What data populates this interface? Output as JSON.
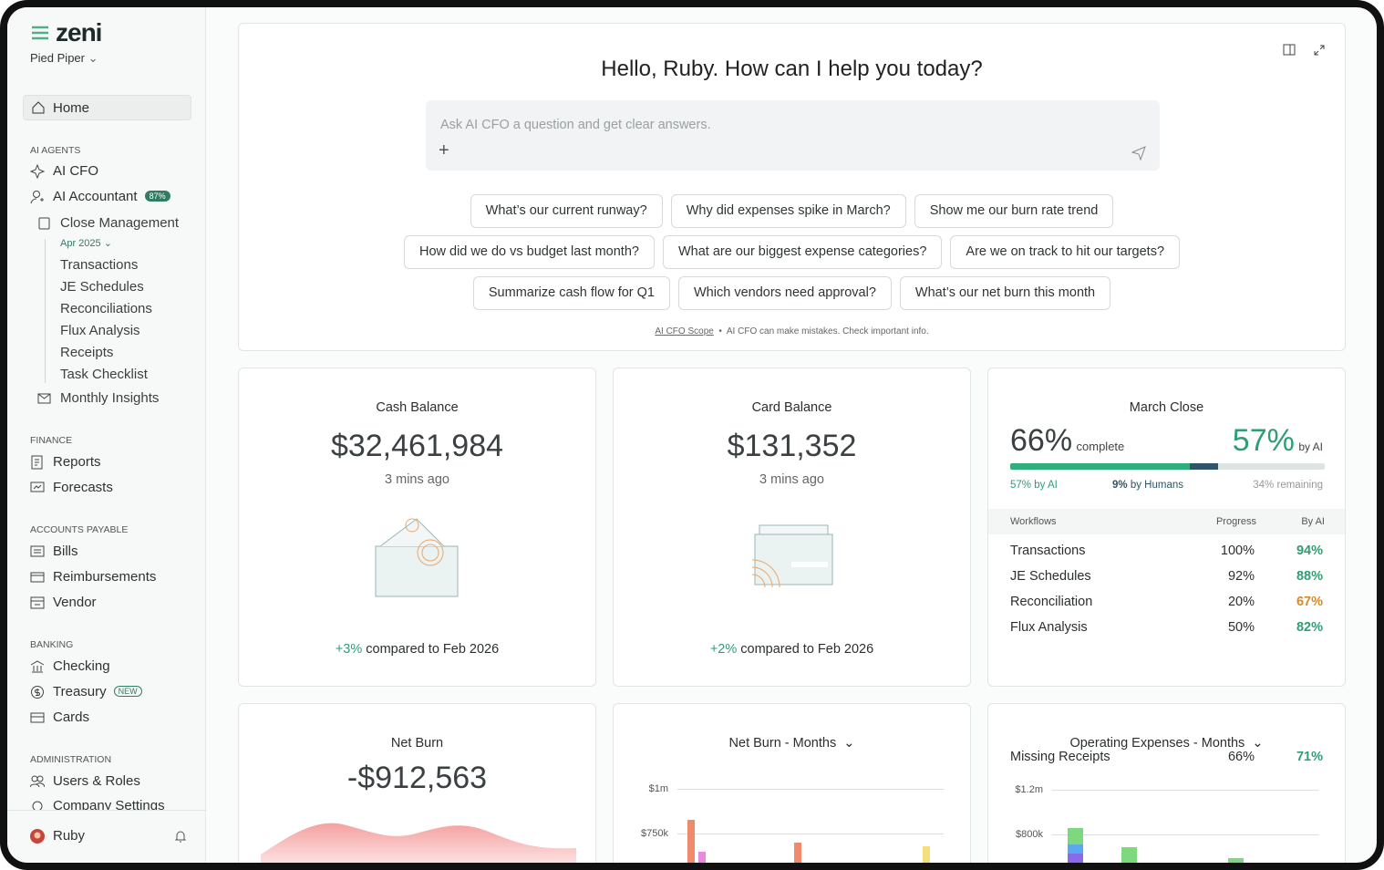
{
  "sidebar": {
    "brand": "zeni",
    "org": "Pied Piper",
    "home": "Home",
    "ai_agents": {
      "title": "AI AGENTS",
      "items": [
        "AI CFO",
        "AI Accountant"
      ],
      "accountant_badge": "87%",
      "close_management": {
        "label": "Close Management",
        "period": "Apr 2025",
        "items": [
          "Transactions",
          "JE Schedules",
          "Reconciliations",
          "Flux Analysis",
          "Receipts",
          "Task Checklist"
        ]
      },
      "monthly_insights": "Monthly Insights"
    },
    "finance": {
      "title": "FINANCE",
      "items": [
        "Reports",
        "Forecasts"
      ]
    },
    "accounts_payable": {
      "title": "ACCOUNTS PAYABLE",
      "items": [
        "Bills",
        "Reimbursements",
        "Vendor"
      ]
    },
    "banking": {
      "title": "BANKING",
      "items": [
        "Checking",
        "Treasury",
        "Cards"
      ],
      "treasury_badge": "NEW"
    },
    "administration": {
      "title": "ADMINISTRATION",
      "items": [
        "Users & Roles",
        "Company Settings"
      ]
    },
    "user": "Ruby"
  },
  "assistant": {
    "greeting": "Hello, Ruby. How can I help you today?",
    "placeholder": "Ask AI CFO a question and get clear answers.",
    "suggestions": [
      [
        "What’s our current runway?",
        "Why did expenses spike in March?",
        "Show me our burn rate trend"
      ],
      [
        "How did we do vs budget last month?",
        "What are our biggest expense categories?",
        "Are we on track to hit our targets?"
      ],
      [
        "Summarize cash flow for Q1",
        "Which vendors need approval?",
        "What’s our net burn this month"
      ]
    ],
    "scope_link": "AI CFO Scope",
    "disclaimer": "AI CFO can make mistakes. Check important info."
  },
  "cash_balance": {
    "title": "Cash Balance",
    "value": "$32,461,984",
    "updated": "3 mins ago",
    "change": "+3%",
    "comparison": "compared to Feb 2026"
  },
  "card_balance": {
    "title": "Card Balance",
    "value": "$131,352",
    "updated": "3 mins ago",
    "change": "+2%",
    "comparison": "compared to Feb 2026"
  },
  "march_close": {
    "title": "March Close",
    "complete": "66%",
    "complete_label": "complete",
    "by_ai": "57%",
    "by_ai_label": "by AI",
    "breakdown": [
      {
        "value": 57,
        "label": "57%",
        "text": "by AI"
      },
      {
        "value": 9,
        "label": "9%",
        "text": "by Humans"
      },
      {
        "value": 34,
        "label": "34%",
        "text": "remaining"
      }
    ],
    "table": {
      "headers": [
        "Workflows",
        "Progress",
        "By AI"
      ],
      "rows": [
        [
          "Transactions",
          "100%",
          "94%"
        ],
        [
          "JE Schedules",
          "92%",
          "88%"
        ],
        [
          "Reconciliation",
          "20%",
          "67%"
        ],
        [
          "Flux Analysis",
          "50%",
          "82%"
        ]
      ]
    }
  },
  "net_burn": {
    "title": "Net Burn",
    "value": "-$912,563"
  },
  "net_burn_months": {
    "title": "Net Burn - Months",
    "yticks": [
      "$1m",
      "$750k"
    ]
  },
  "operating_expenses": {
    "title": "Operating Expenses - Months",
    "overlay_row": [
      "Missing Receipts",
      "66%",
      "71%"
    ],
    "yticks": [
      "$1.2m",
      "$800k"
    ]
  }
}
